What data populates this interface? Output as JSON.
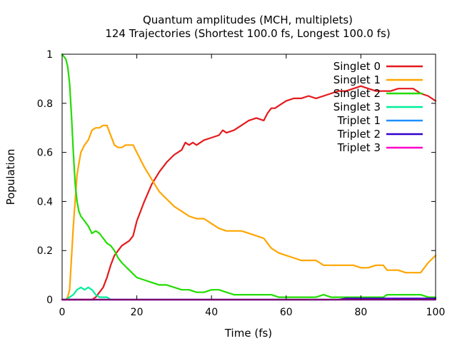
{
  "chart_data": {
    "type": "line",
    "title": "Quantum amplitudes (MCH, multiplets)",
    "subtitle": "124 Trajectories (Shortest 100.0 fs, Longest 100.0 fs)",
    "xlabel": "Time (fs)",
    "ylabel": "Population",
    "xlim": [
      0,
      100
    ],
    "ylim": [
      0,
      1
    ],
    "xticks": [
      0,
      20,
      40,
      60,
      80,
      100
    ],
    "yticks": [
      0,
      0.2,
      0.4,
      0.6,
      0.8,
      1
    ],
    "ytick_labels": [
      "0",
      "0.2",
      "0.4",
      "0.6",
      "0.8",
      "1"
    ],
    "xtick_labels": [
      "0",
      "20",
      "40",
      "60",
      "80",
      "100"
    ],
    "grid": false,
    "legend_position": "top-right",
    "series": [
      {
        "name": "Singlet 0",
        "color": "#e41a1c",
        "x": [
          0,
          8,
          9,
          10,
          11,
          12,
          13,
          14,
          15,
          16,
          18,
          19,
          20,
          22,
          24,
          26,
          28,
          30,
          32,
          33,
          34,
          35,
          36,
          38,
          40,
          42,
          43,
          44,
          46,
          48,
          50,
          52,
          54,
          55,
          56,
          57,
          58,
          60,
          62,
          64,
          66,
          68,
          70,
          72,
          74,
          76,
          78,
          80,
          82,
          84,
          86,
          88,
          90,
          92,
          94,
          96,
          98,
          100
        ],
        "values": [
          0,
          0,
          0.01,
          0.03,
          0.05,
          0.09,
          0.14,
          0.18,
          0.2,
          0.22,
          0.24,
          0.26,
          0.32,
          0.4,
          0.47,
          0.52,
          0.56,
          0.59,
          0.61,
          0.64,
          0.63,
          0.64,
          0.63,
          0.65,
          0.66,
          0.67,
          0.69,
          0.68,
          0.69,
          0.71,
          0.73,
          0.74,
          0.73,
          0.76,
          0.78,
          0.78,
          0.79,
          0.81,
          0.82,
          0.82,
          0.83,
          0.82,
          0.83,
          0.84,
          0.85,
          0.85,
          0.86,
          0.87,
          0.86,
          0.85,
          0.85,
          0.85,
          0.86,
          0.86,
          0.86,
          0.84,
          0.83,
          0.81
        ]
      },
      {
        "name": "Singlet 1",
        "color": "#ffa500",
        "x": [
          0,
          1,
          1.5,
          2,
          3,
          4,
          5,
          6,
          7,
          8,
          9,
          10,
          11,
          12,
          13,
          14,
          15,
          16,
          17,
          18,
          19,
          20,
          22,
          24,
          26,
          28,
          30,
          32,
          34,
          36,
          38,
          40,
          42,
          44,
          46,
          48,
          50,
          52,
          54,
          56,
          58,
          60,
          62,
          64,
          66,
          68,
          70,
          72,
          74,
          76,
          78,
          80,
          82,
          84,
          86,
          87,
          88,
          90,
          92,
          94,
          96,
          98,
          100
        ],
        "values": [
          0,
          0,
          0.01,
          0.04,
          0.3,
          0.51,
          0.6,
          0.63,
          0.65,
          0.69,
          0.7,
          0.7,
          0.71,
          0.71,
          0.67,
          0.63,
          0.62,
          0.62,
          0.63,
          0.63,
          0.63,
          0.6,
          0.54,
          0.49,
          0.44,
          0.41,
          0.38,
          0.36,
          0.34,
          0.33,
          0.33,
          0.31,
          0.29,
          0.28,
          0.28,
          0.28,
          0.27,
          0.26,
          0.25,
          0.21,
          0.19,
          0.18,
          0.17,
          0.16,
          0.16,
          0.16,
          0.14,
          0.14,
          0.14,
          0.14,
          0.14,
          0.13,
          0.13,
          0.14,
          0.14,
          0.12,
          0.12,
          0.12,
          0.11,
          0.11,
          0.11,
          0.15,
          0.18
        ]
      },
      {
        "name": "Singlet 2",
        "color": "#22dd00",
        "x": [
          0,
          0.5,
          1,
          1.5,
          2,
          2.5,
          3,
          3.5,
          4,
          4.5,
          5,
          6,
          7,
          8,
          9,
          10,
          11,
          12,
          13,
          14,
          15,
          16,
          18,
          20,
          22,
          24,
          26,
          28,
          30,
          32,
          34,
          36,
          38,
          40,
          42,
          44,
          46,
          48,
          50,
          52,
          54,
          56,
          58,
          60,
          62,
          64,
          66,
          68,
          70,
          72,
          74,
          76,
          78,
          80,
          82,
          84,
          86,
          87,
          88,
          90,
          92,
          94,
          96,
          98,
          100
        ],
        "values": [
          1,
          0.99,
          0.98,
          0.95,
          0.88,
          0.75,
          0.6,
          0.47,
          0.4,
          0.36,
          0.34,
          0.32,
          0.3,
          0.27,
          0.28,
          0.27,
          0.25,
          0.23,
          0.22,
          0.2,
          0.17,
          0.15,
          0.12,
          0.09,
          0.08,
          0.07,
          0.06,
          0.06,
          0.05,
          0.04,
          0.04,
          0.03,
          0.03,
          0.04,
          0.04,
          0.03,
          0.02,
          0.02,
          0.02,
          0.02,
          0.02,
          0.02,
          0.01,
          0.01,
          0.01,
          0.01,
          0.01,
          0.01,
          0.02,
          0.01,
          0.01,
          0.01,
          0.01,
          0.01,
          0.01,
          0.01,
          0.01,
          0.02,
          0.02,
          0.02,
          0.02,
          0.02,
          0.02,
          0.01,
          0.01
        ]
      },
      {
        "name": "Singlet 3",
        "color": "#00ee99",
        "x": [
          0,
          1,
          2,
          3,
          4,
          5,
          6,
          7,
          8,
          9,
          10,
          11,
          12,
          13,
          14,
          100
        ],
        "values": [
          0,
          0,
          0.01,
          0.02,
          0.04,
          0.05,
          0.04,
          0.05,
          0.04,
          0.02,
          0.01,
          0.01,
          0.01,
          0,
          0,
          0
        ]
      },
      {
        "name": "Triplet 1",
        "color": "#1e90ff",
        "x": [
          0,
          100
        ],
        "values": [
          0,
          0
        ]
      },
      {
        "name": "Triplet 2",
        "color": "#3300cc",
        "x": [
          0,
          70,
          72,
          74,
          76,
          78,
          80,
          84,
          88,
          92,
          96,
          100
        ],
        "values": [
          0,
          0,
          0,
          0,
          0.005,
          0.005,
          0.005,
          0.005,
          0.005,
          0.005,
          0.005,
          0.005
        ]
      },
      {
        "name": "Triplet 3",
        "color": "#ff00cc",
        "x": [
          0,
          100
        ],
        "values": [
          0,
          0
        ]
      }
    ]
  }
}
